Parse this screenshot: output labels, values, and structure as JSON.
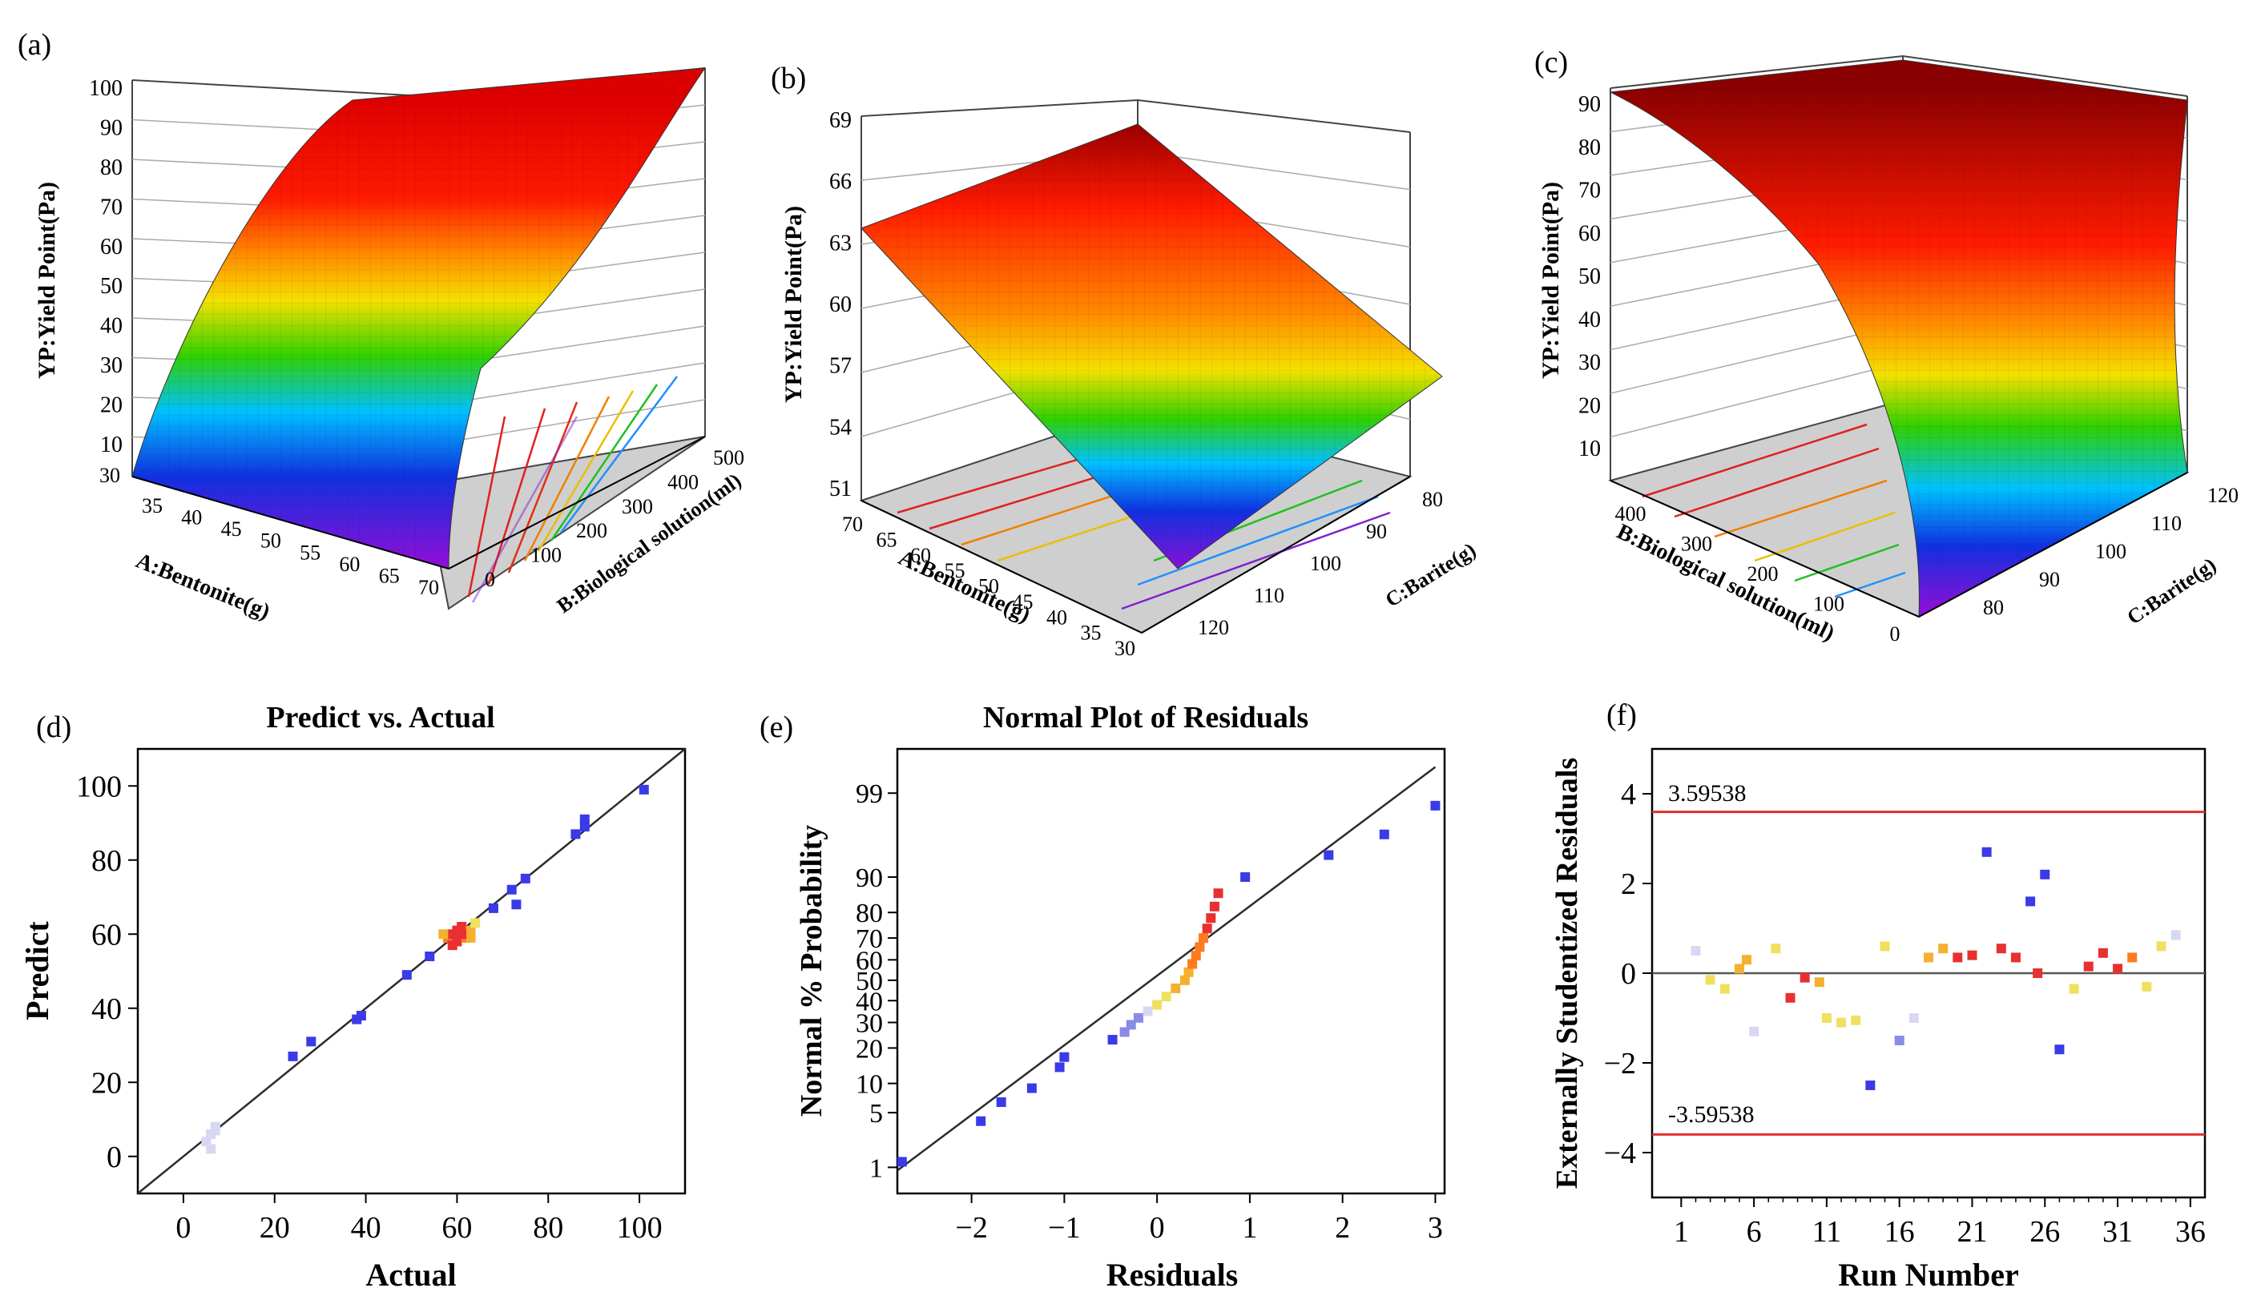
{
  "figure": {
    "description_panels": [
      "(a)",
      "(b)",
      "(c)",
      "(d)",
      "(e)",
      "(f)"
    ]
  },
  "colors": {
    "surface_low": "#6a0dad",
    "surface_high": "#cc0000",
    "line": "#2b2b2b",
    "ref_line": "#e03030",
    "floor": "#cfcfcf"
  },
  "chart_data": [
    {
      "panel": "(a)",
      "type": "surface",
      "zlabel": "YP:Yield Point(Pa)",
      "xlabel": "A:Bentonite(g)",
      "ylabel": "B:Biological solution(ml)",
      "zticks": [
        "10",
        "20",
        "30",
        "40",
        "50",
        "60",
        "70",
        "80",
        "90",
        "100"
      ],
      "z_bottom_tick": "30",
      "xticks": [
        "35",
        "40",
        "45",
        "50",
        "55",
        "60",
        "65",
        "70"
      ],
      "yticks": [
        "0",
        "100",
        "200",
        "300",
        "400",
        "500"
      ],
      "zlim": [
        0,
        100
      ]
    },
    {
      "panel": "(b)",
      "type": "surface",
      "zlabel": "YP:Yield Point(Pa)",
      "xlabel": "A:Bentonite(g)",
      "ylabel": "C:Barite(g)",
      "zticks": [
        "51",
        "54",
        "57",
        "60",
        "63",
        "66",
        "69"
      ],
      "xticks": [
        "70",
        "65",
        "60",
        "55",
        "50",
        "45",
        "40",
        "35",
        "30"
      ],
      "yticks": [
        "80",
        "90",
        "100",
        "110",
        "120"
      ],
      "zlim": [
        51,
        69
      ]
    },
    {
      "panel": "(c)",
      "type": "surface",
      "zlabel": "YP:Yield Point(Pa)",
      "xlabel": "B:Biological solution(ml)",
      "ylabel": "C:Barite(g)",
      "zticks": [
        "10",
        "20",
        "30",
        "40",
        "50",
        "60",
        "70",
        "80",
        "90"
      ],
      "xticks": [
        "400",
        "300",
        "200",
        "100",
        "0"
      ],
      "yticks": [
        "80",
        "90",
        "100",
        "110",
        "120"
      ],
      "zlim": [
        0,
        95
      ]
    },
    {
      "panel": "(d)",
      "type": "scatter",
      "title": "Predict vs. Actual",
      "xlabel": "Actual",
      "ylabel": "Predict",
      "xlim": [
        -10,
        110
      ],
      "ylim": [
        -10,
        110
      ],
      "xticks": [
        "0",
        "20",
        "40",
        "60",
        "80",
        "100"
      ],
      "yticks": [
        "0",
        "20",
        "40",
        "60",
        "80",
        "100"
      ],
      "points": [
        [
          5,
          4
        ],
        [
          6,
          6
        ],
        [
          7,
          7
        ],
        [
          6,
          2
        ],
        [
          7,
          8
        ],
        [
          24,
          27
        ],
        [
          28,
          31
        ],
        [
          38,
          37
        ],
        [
          39,
          38
        ],
        [
          49,
          49
        ],
        [
          54,
          54
        ],
        [
          58,
          59
        ],
        [
          59,
          60
        ],
        [
          60,
          58
        ],
        [
          61,
          62
        ],
        [
          62,
          60
        ],
        [
          63,
          61
        ],
        [
          64,
          63
        ],
        [
          60,
          61
        ],
        [
          62,
          59
        ],
        [
          59,
          57
        ],
        [
          63,
          59
        ],
        [
          61,
          60
        ],
        [
          57,
          60
        ],
        [
          68,
          67
        ],
        [
          72,
          72
        ],
        [
          73,
          68
        ],
        [
          75,
          75
        ],
        [
          86,
          87
        ],
        [
          88,
          91
        ],
        [
          88,
          89
        ],
        [
          101,
          99
        ]
      ]
    },
    {
      "panel": "(e)",
      "type": "scatter",
      "title": "Normal Plot of Residuals",
      "xlabel": "Residuals",
      "ylabel": "Normal % Probability",
      "xlim": [
        -2.8,
        3.1
      ],
      "xticks": [
        "−2",
        "−1",
        "0",
        "1",
        "2",
        "3"
      ],
      "yticks": [
        "1",
        "5",
        "10",
        "20",
        "30",
        "40",
        "50",
        "60",
        "70",
        "80",
        "90",
        "99"
      ],
      "points": [
        [
          -2.75,
          1.2
        ],
        [
          -1.9,
          4
        ],
        [
          -1.68,
          6.5
        ],
        [
          -1.35,
          9
        ],
        [
          -1.05,
          14
        ],
        [
          -1.0,
          17
        ],
        [
          -0.48,
          23
        ],
        [
          -0.35,
          26
        ],
        [
          -0.28,
          29
        ],
        [
          -0.2,
          32
        ],
        [
          -0.1,
          35
        ],
        [
          0.0,
          38
        ],
        [
          0.1,
          42
        ],
        [
          0.2,
          46
        ],
        [
          0.3,
          50
        ],
        [
          0.34,
          54
        ],
        [
          0.38,
          58
        ],
        [
          0.42,
          62
        ],
        [
          0.46,
          66
        ],
        [
          0.5,
          70
        ],
        [
          0.54,
          74
        ],
        [
          0.58,
          78
        ],
        [
          0.62,
          82
        ],
        [
          0.66,
          86
        ],
        [
          0.95,
          90
        ],
        [
          1.85,
          94
        ],
        [
          2.45,
          96.5
        ],
        [
          3.0,
          98.5
        ]
      ]
    },
    {
      "panel": "(f)",
      "type": "scatter",
      "xlabel": "Run Number",
      "ylabel": "Externally Studentized Residuals",
      "xlim": [
        -1,
        37
      ],
      "ylim": [
        -5,
        5
      ],
      "xticks": [
        "1",
        "6",
        "11",
        "16",
        "21",
        "26",
        "31",
        "36"
      ],
      "yticks": [
        "−4",
        "−2",
        "0",
        "2",
        "4"
      ],
      "upper_limit": 3.59538,
      "lower_limit": -3.59538,
      "upper_label": "3.59538",
      "lower_label": "-3.59538",
      "points": [
        [
          2,
          0.5
        ],
        [
          3,
          -0.15
        ],
        [
          4,
          -0.35
        ],
        [
          5,
          0.1
        ],
        [
          5.5,
          0.3
        ],
        [
          6,
          -1.3
        ],
        [
          7.5,
          0.55
        ],
        [
          8.5,
          -0.55
        ],
        [
          9.5,
          -0.1
        ],
        [
          10.5,
          -0.2
        ],
        [
          11,
          -1.0
        ],
        [
          12,
          -1.1
        ],
        [
          13,
          -1.05
        ],
        [
          14,
          -2.5
        ],
        [
          15,
          0.6
        ],
        [
          16,
          -1.5
        ],
        [
          17,
          -1.0
        ],
        [
          18,
          0.35
        ],
        [
          19,
          0.55
        ],
        [
          20,
          0.35
        ],
        [
          21,
          0.4
        ],
        [
          22,
          2.7
        ],
        [
          23,
          0.55
        ],
        [
          24,
          0.35
        ],
        [
          25,
          1.6
        ],
        [
          25.5,
          0.0
        ],
        [
          26,
          2.2
        ],
        [
          27,
          -1.7
        ],
        [
          28,
          -0.35
        ],
        [
          29,
          0.15
        ],
        [
          30,
          0.45
        ],
        [
          31,
          0.1
        ],
        [
          32,
          0.35
        ],
        [
          33,
          -0.3
        ],
        [
          34,
          0.6
        ],
        [
          35,
          0.85
        ]
      ]
    }
  ]
}
